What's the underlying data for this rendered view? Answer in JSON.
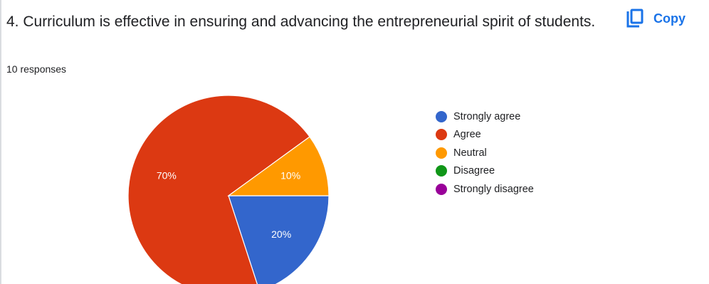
{
  "question": {
    "title": "4. Curriculum is effective in ensuring and advancing the entrepreneurial spirit of students.",
    "responses": "10 responses"
  },
  "copy_button": {
    "label": "Copy",
    "icon": "copy-icon"
  },
  "colors": {
    "accent": "#1a73e8",
    "strongly_agree": "#3366cc",
    "agree": "#dc3912",
    "neutral": "#ff9900",
    "disagree": "#109618",
    "strongly_disagree": "#990099"
  },
  "chart_data": {
    "type": "pie",
    "title": "",
    "legend_position": "right",
    "categories": [
      "Strongly agree",
      "Agree",
      "Neutral",
      "Disagree",
      "Strongly disagree"
    ],
    "values": [
      20,
      70,
      10,
      0,
      0
    ],
    "labels": [
      "20%",
      "70%",
      "10%",
      "",
      ""
    ],
    "colors": [
      "#3366cc",
      "#dc3912",
      "#ff9900",
      "#109618",
      "#990099"
    ]
  }
}
